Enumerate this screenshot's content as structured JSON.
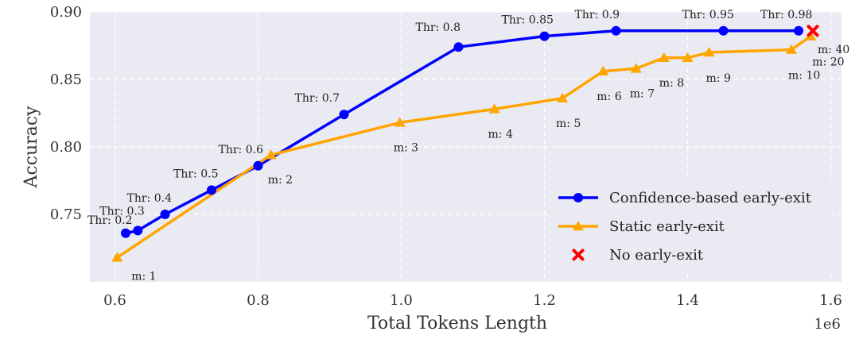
{
  "chart_data": {
    "type": "line",
    "xlabel": "Total Tokens Length",
    "ylabel": "Accuracy",
    "x_scale_label": "1e6",
    "xlim": [
      0.565,
      1.615
    ],
    "ylim": [
      0.7,
      0.9
    ],
    "xticks": [
      0.6,
      0.8,
      1.0,
      1.2,
      1.4,
      1.6
    ],
    "xtick_labels": [
      "0.6",
      "0.8",
      "1.0",
      "1.2",
      "1.4",
      "1.6"
    ],
    "yticks": [
      0.75,
      0.8,
      0.85,
      0.9
    ],
    "ytick_labels": [
      "0.75",
      "0.80",
      "0.85",
      "0.90"
    ],
    "grid": true,
    "background": "#eaeaf2",
    "legend_position": "lower-right",
    "series": [
      {
        "name": "Confidence-based early-exit",
        "marker": "circle",
        "color": "#0000ff",
        "x": [
          0.615,
          0.632,
          0.67,
          0.735,
          0.8,
          0.92,
          1.08,
          1.2,
          1.3,
          1.45,
          1.555
        ],
        "y": [
          0.736,
          0.738,
          0.75,
          0.768,
          0.786,
          0.824,
          0.874,
          0.882,
          0.886,
          0.886,
          0.886
        ],
        "point_labels": [
          "Thr: 0.2",
          "Thr: 0.3",
          "Thr: 0.4",
          "Thr: 0.5",
          "Thr: 0.6",
          "Thr: 0.7",
          "Thr: 0.8",
          "Thr: 0.85",
          "Thr: 0.9",
          "Thr: 0.95",
          "Thr: 0.98"
        ]
      },
      {
        "name": "Static early-exit",
        "marker": "triangle",
        "color": "#ffa500",
        "x": [
          0.603,
          0.818,
          0.998,
          1.13,
          1.225,
          1.282,
          1.328,
          1.367,
          1.4,
          1.43,
          1.545,
          1.572
        ],
        "y": [
          0.718,
          0.794,
          0.818,
          0.828,
          0.836,
          0.856,
          0.858,
          0.866,
          0.866,
          0.87,
          0.872,
          0.882
        ],
        "point_labels": [
          "m: 1",
          "m: 2",
          "m: 3",
          "m: 4",
          "m: 5",
          "m: 6",
          "m: 7",
          "m: 8",
          "",
          "m: 9",
          "m: 10",
          "m: 20"
        ]
      },
      {
        "name": "No early-exit",
        "marker": "x",
        "color": "#ff0000",
        "x": [
          1.575
        ],
        "y": [
          0.886
        ],
        "point_labels": [
          "m: 40"
        ]
      }
    ]
  }
}
